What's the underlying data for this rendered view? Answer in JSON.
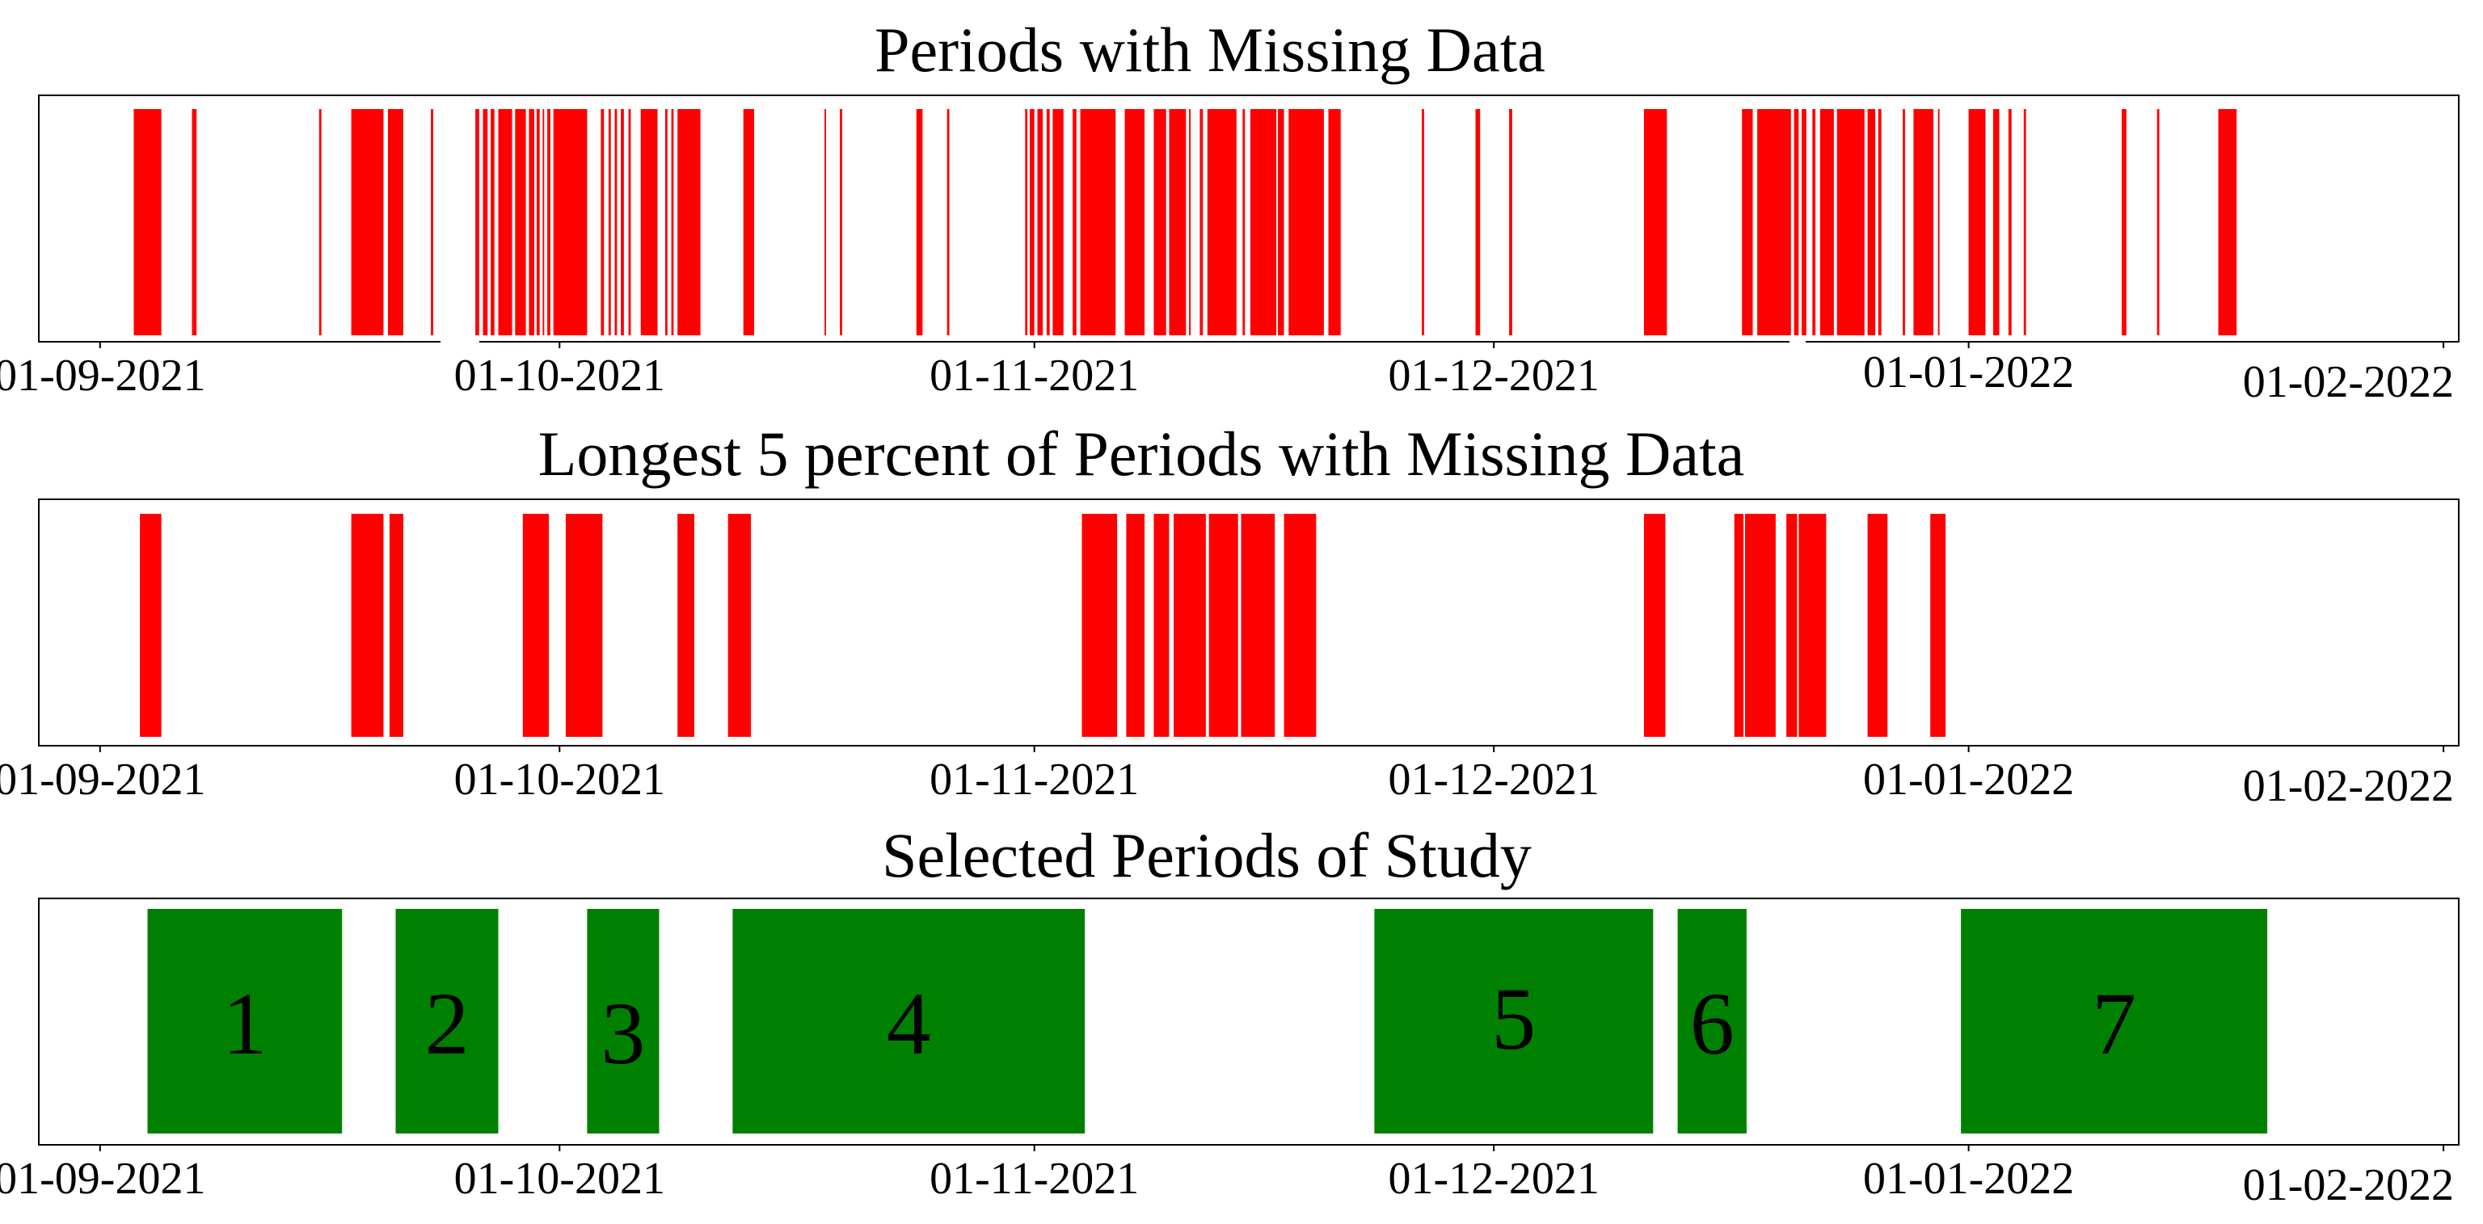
{
  "colors": {
    "missing": "#ff0000",
    "selected": "#008000",
    "frame": "#000000",
    "background": "#ffffff"
  },
  "chart_data": [
    {
      "type": "bar",
      "title": "Periods with Missing Data",
      "x_unit": "days since 01-09-2021",
      "xlim": [
        -4,
        154
      ],
      "tick_positions": [
        0,
        30,
        61,
        91,
        122,
        153
      ],
      "tick_labels": [
        "01-09-2021",
        "01-10-2021",
        "01-11-2021",
        "01-12-2021",
        "01-01-2022",
        "01-02-2022"
      ],
      "intervals": [
        [
          2.2,
          4.0
        ],
        [
          6.0,
          6.3
        ],
        [
          14.3,
          14.45
        ],
        [
          16.4,
          18.5
        ],
        [
          18.8,
          19.8
        ],
        [
          21.6,
          21.75
        ],
        [
          24.5,
          24.75
        ],
        [
          25.0,
          25.3
        ],
        [
          25.5,
          25.75
        ],
        [
          26.0,
          26.9
        ],
        [
          27.1,
          27.8
        ],
        [
          28.0,
          28.35
        ],
        [
          28.5,
          28.7
        ],
        [
          28.9,
          29.0
        ],
        [
          29.2,
          29.4
        ],
        [
          29.6,
          31.8
        ],
        [
          32.7,
          32.9
        ],
        [
          33.2,
          33.35
        ],
        [
          33.6,
          33.75
        ],
        [
          34.0,
          34.2
        ],
        [
          34.5,
          34.65
        ],
        [
          35.3,
          36.4
        ],
        [
          36.9,
          37.05
        ],
        [
          37.3,
          37.45
        ],
        [
          37.7,
          39.2
        ],
        [
          42.0,
          42.7
        ],
        [
          47.3,
          47.4
        ],
        [
          48.3,
          48.45
        ],
        [
          53.3,
          53.7
        ],
        [
          55.3,
          55.45
        ],
        [
          60.4,
          60.55
        ],
        [
          60.7,
          61.0
        ],
        [
          61.2,
          61.55
        ],
        [
          61.8,
          62.0
        ],
        [
          62.2,
          62.9
        ],
        [
          63.5,
          63.75
        ],
        [
          64.0,
          66.3
        ],
        [
          66.9,
          68.2
        ],
        [
          68.8,
          69.6
        ],
        [
          69.8,
          70.9
        ],
        [
          71.1,
          71.2
        ],
        [
          71.8,
          72.0
        ],
        [
          72.3,
          74.2
        ],
        [
          74.6,
          74.75
        ],
        [
          75.1,
          76.8
        ],
        [
          76.9,
          77.3
        ],
        [
          77.6,
          79.9
        ],
        [
          80.2,
          81.0
        ],
        [
          86.3,
          86.45
        ],
        [
          89.8,
          90.1
        ],
        [
          92.0,
          92.2
        ],
        [
          100.8,
          102.3
        ],
        [
          107.2,
          107.9
        ],
        [
          108.2,
          110.4
        ],
        [
          110.6,
          110.9
        ],
        [
          111.1,
          111.4
        ],
        [
          111.8,
          112.0
        ],
        [
          112.3,
          113.2
        ],
        [
          113.4,
          115.2
        ],
        [
          115.4,
          115.9
        ],
        [
          116.1,
          116.3
        ],
        [
          117.7,
          117.85
        ],
        [
          118.4,
          119.7
        ],
        [
          120.0,
          120.1
        ],
        [
          122.0,
          123.1
        ],
        [
          123.6,
          124.0
        ],
        [
          124.6,
          124.8
        ],
        [
          125.6,
          125.75
        ],
        [
          132.0,
          132.3
        ],
        [
          134.3,
          134.45
        ],
        [
          138.3,
          139.5
        ]
      ]
    },
    {
      "type": "bar",
      "title": "Longest 5 percent of Periods with Missing Data",
      "x_unit": "days since 01-09-2021",
      "xlim": [
        -4,
        154
      ],
      "tick_positions": [
        0,
        30,
        61,
        91,
        122,
        153
      ],
      "tick_labels": [
        "01-09-2021",
        "01-10-2021",
        "01-11-2021",
        "01-12-2021",
        "01-01-2022",
        "01-02-2022"
      ],
      "intervals": [
        [
          2.6,
          4.0
        ],
        [
          16.4,
          18.5
        ],
        [
          18.9,
          19.8
        ],
        [
          27.6,
          29.3
        ],
        [
          30.4,
          32.8
        ],
        [
          37.7,
          38.8
        ],
        [
          41.0,
          42.5
        ],
        [
          64.1,
          66.4
        ],
        [
          67.0,
          68.2
        ],
        [
          68.8,
          69.8
        ],
        [
          70.1,
          72.2
        ],
        [
          72.4,
          74.3
        ],
        [
          74.5,
          76.7
        ],
        [
          77.3,
          79.4
        ],
        [
          100.8,
          102.2
        ],
        [
          106.7,
          107.3
        ],
        [
          107.4,
          109.4
        ],
        [
          110.1,
          110.8
        ],
        [
          110.9,
          112.7
        ],
        [
          115.4,
          116.7
        ],
        [
          119.5,
          120.5
        ]
      ]
    },
    {
      "type": "bar",
      "title": "Selected Periods of Study",
      "x_unit": "days since 01-09-2021",
      "xlim": [
        -4,
        154
      ],
      "tick_positions": [
        0,
        30,
        61,
        91,
        122,
        153
      ],
      "tick_labels": [
        "01-09-2021",
        "01-10-2021",
        "01-11-2021",
        "01-12-2021",
        "01-01-2022",
        "01-02-2022"
      ],
      "periods": [
        {
          "label": "1",
          "start": 3.1,
          "end": 15.8
        },
        {
          "label": "2",
          "start": 19.3,
          "end": 26.0
        },
        {
          "label": "3",
          "start": 31.8,
          "end": 36.5
        },
        {
          "label": "4",
          "start": 41.3,
          "end": 64.3
        },
        {
          "label": "5",
          "start": 83.2,
          "end": 101.4
        },
        {
          "label": "6",
          "start": 103.0,
          "end": 107.5
        },
        {
          "label": "7",
          "start": 121.5,
          "end": 141.5
        }
      ]
    }
  ]
}
